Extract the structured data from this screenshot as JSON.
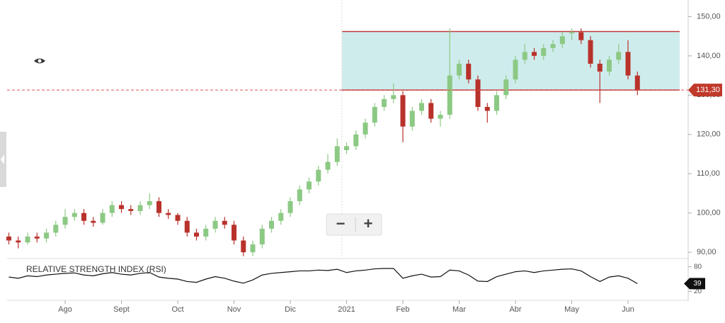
{
  "chart_data": {
    "type": "candlestick",
    "categories": [
      null,
      null,
      null,
      null,
      null,
      null,
      "Ago",
      null,
      null,
      null,
      null,
      null,
      "Sept",
      null,
      null,
      null,
      null,
      null,
      "Oct",
      null,
      null,
      null,
      null,
      null,
      "Nov",
      null,
      null,
      null,
      null,
      null,
      "Dic",
      null,
      null,
      null,
      null,
      null,
      "2021",
      null,
      null,
      null,
      null,
      null,
      "Feb",
      null,
      null,
      null,
      null,
      null,
      "Mar",
      null,
      null,
      null,
      null,
      null,
      "Abr",
      null,
      null,
      null,
      null,
      null,
      "May",
      null,
      null,
      null,
      null,
      null,
      "Jun",
      null
    ],
    "open": [
      94,
      93,
      92.5,
      94,
      93.5,
      95,
      97,
      99,
      100,
      98,
      97.5,
      100,
      102,
      101,
      100.5,
      102,
      103,
      100,
      99.5,
      98,
      95,
      94,
      96,
      98,
      97,
      93,
      90,
      92,
      96,
      98,
      100,
      103,
      106,
      108,
      111,
      113,
      116,
      117,
      120,
      123,
      127,
      129,
      130,
      122,
      126,
      128,
      124,
      125,
      135,
      138,
      134,
      127,
      126,
      130,
      134,
      139,
      141,
      140,
      142,
      143,
      146,
      146,
      144,
      138,
      136,
      139,
      141,
      135
    ],
    "high": [
      95,
      94,
      95,
      95,
      96,
      98,
      101,
      101,
      101,
      99,
      101,
      103,
      103,
      102,
      103,
      105,
      104,
      101,
      100,
      99,
      96,
      97,
      99,
      99,
      98,
      94,
      93,
      97,
      99,
      101,
      104,
      107,
      109,
      112,
      115,
      119,
      118,
      121,
      124,
      128,
      130,
      133,
      131,
      127,
      129,
      129,
      126,
      147,
      139,
      139,
      135,
      128,
      131,
      135,
      140,
      143,
      142,
      143,
      144,
      146,
      147,
      147,
      145,
      139,
      140,
      143,
      144,
      136
    ],
    "low": [
      92,
      91,
      92,
      92.5,
      92.5,
      94,
      96,
      98,
      97,
      96.5,
      97,
      99,
      100,
      99.5,
      99.5,
      101,
      99,
      98.5,
      97,
      94,
      93,
      93,
      95,
      96,
      92,
      89,
      89,
      91,
      95,
      97,
      99,
      102,
      105,
      107,
      110,
      112,
      115,
      116,
      119,
      122,
      126,
      128,
      118,
      121,
      125,
      123,
      122,
      124,
      134,
      133,
      126,
      123,
      125,
      129,
      133,
      138,
      139,
      139,
      141,
      142,
      144,
      143,
      137,
      128,
      135,
      138,
      134,
      130
    ],
    "close": [
      93,
      92.5,
      94,
      93.5,
      95,
      97,
      99,
      100,
      98,
      97.5,
      100,
      102,
      101,
      100.5,
      102,
      103,
      100,
      99.5,
      98,
      95,
      94,
      96,
      98,
      97,
      93,
      90,
      92,
      96,
      98,
      100,
      103,
      106,
      108,
      111,
      113,
      117,
      117,
      120,
      123,
      127,
      129,
      130,
      122,
      126,
      128,
      124,
      125,
      135,
      138,
      134,
      127,
      126,
      130,
      134,
      139,
      141,
      140,
      142,
      143,
      145,
      146,
      144,
      138,
      136,
      139,
      141,
      135,
      131.3
    ],
    "up_color": "#8cc984",
    "down_color": "#b8322b",
    "ylim": [
      87.5,
      153.5
    ],
    "yticks": [
      {
        "value": 90,
        "label": "90,00"
      },
      {
        "value": 100,
        "label": "100,00"
      },
      {
        "value": 110,
        "label": "110,00"
      },
      {
        "value": 120,
        "label": "120,00"
      },
      {
        "value": 130,
        "label": "130,00"
      },
      {
        "value": 140,
        "label": "140,00"
      },
      {
        "value": 150,
        "label": "150,00"
      }
    ],
    "zone": {
      "low": 131.3,
      "high": 146.2,
      "color": "#c7e9ea",
      "border_color": "#c0393b"
    },
    "last_price": {
      "value": 131.3,
      "label": "131,30"
    },
    "rsi": {
      "title": "RELATIVE STRENGTH INDEX (RSI)",
      "values": [
        55,
        52,
        58,
        56,
        60,
        62,
        64,
        65,
        60,
        58,
        63,
        66,
        62,
        60,
        64,
        66,
        55,
        52,
        50,
        44,
        42,
        50,
        56,
        52,
        45,
        40,
        48,
        60,
        64,
        66,
        68,
        70,
        70,
        72,
        71,
        74,
        66,
        70,
        72,
        75,
        76,
        76,
        52,
        58,
        62,
        55,
        56,
        72,
        70,
        60,
        45,
        44,
        56,
        62,
        68,
        70,
        66,
        70,
        72,
        74,
        75,
        70,
        56,
        44,
        55,
        58,
        52,
        39
      ],
      "ylim": [
        5,
        95
      ],
      "yticks": [
        20,
        80
      ],
      "last": 39
    },
    "controls": [
      "−",
      "+"
    ]
  }
}
